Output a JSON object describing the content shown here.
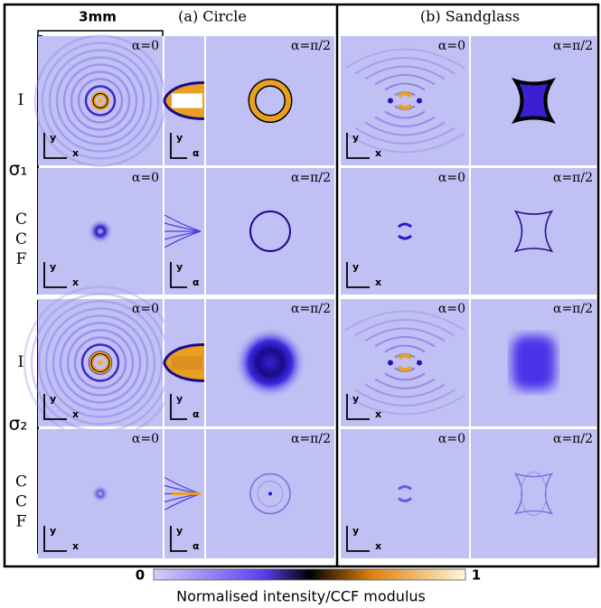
{
  "scale_bar": "3mm",
  "panels": [
    "(a) Circle",
    "(b) Sandglass"
  ],
  "alpha_labels": [
    "α=0",
    "α=π/2"
  ],
  "sigma_labels": [
    "σ₁",
    "σ₂"
  ],
  "row_labels": [
    "I",
    "CCF"
  ],
  "axis_labels": {
    "x": "x",
    "y": "y",
    "alpha": "α"
  },
  "colorbar": {
    "min": 0,
    "max": 1,
    "label": "Normalised intensity/CCF modulus"
  }
}
